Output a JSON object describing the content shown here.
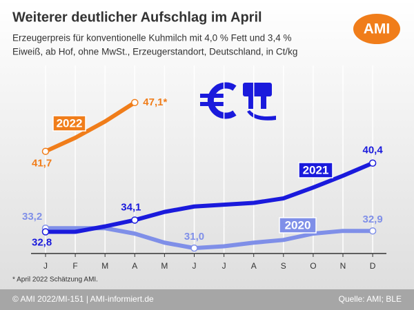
{
  "chart_data": {
    "type": "line",
    "title": "Weiterer deutlicher Aufschlag im April",
    "subtitle": [
      "Erzeugerpreis für konventionelle Kuhmilch mit 4,0 % Fett und 3,4 %",
      "Eiweiß, ab Hof, ohne MwSt., Erzeugerstandort, Deutschland, in Ct/kg"
    ],
    "logo": "AMI",
    "categories": [
      "J",
      "F",
      "M",
      "A",
      "M",
      "J",
      "J",
      "A",
      "S",
      "O",
      "N",
      "D"
    ],
    "ylim": [
      30.4,
      51.2
    ],
    "grid": true,
    "series": [
      {
        "name": "2020",
        "color": "#7f8fe8",
        "values": [
          33.2,
          33.2,
          33.2,
          32.6,
          31.6,
          31.0,
          31.2,
          31.6,
          31.9,
          32.6,
          32.9,
          32.9
        ],
        "value_labels": [
          "33,2",
          null,
          null,
          null,
          null,
          "31,0",
          null,
          null,
          null,
          null,
          null,
          "32,9"
        ]
      },
      {
        "name": "2021",
        "color": "#1a1adc",
        "values": [
          32.8,
          32.8,
          33.4,
          34.1,
          35.0,
          35.6,
          35.8,
          36.0,
          36.5,
          37.7,
          39.0,
          40.4
        ],
        "value_labels": [
          "32,8",
          null,
          null,
          "34,1",
          null,
          null,
          null,
          null,
          null,
          null,
          null,
          "40,4"
        ]
      },
      {
        "name": "2022",
        "color": "#f07d1a",
        "values": [
          41.7,
          43.2,
          45.0,
          47.1,
          null,
          null,
          null,
          null,
          null,
          null,
          null,
          null
        ],
        "value_labels": [
          "41,7",
          null,
          null,
          "47,1*",
          null,
          null,
          null,
          null,
          null,
          null,
          null,
          null
        ]
      }
    ],
    "footnote": "* April 2022 Schätzung AMI.",
    "footer_left": "© AMI 2022/MI-151 | AMI-informiert.de",
    "footer_right": "Quelle: AMI; BLE"
  }
}
